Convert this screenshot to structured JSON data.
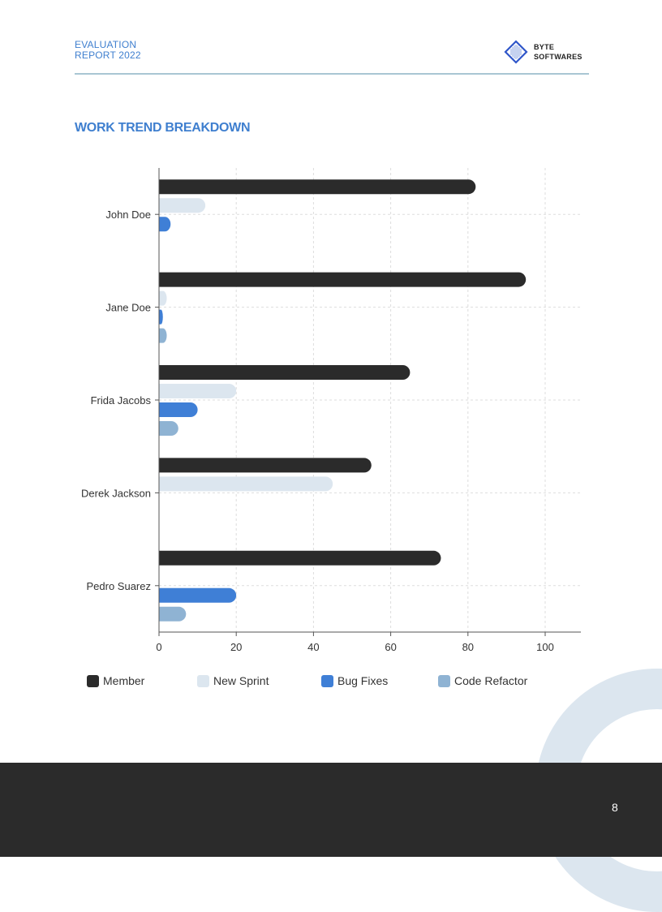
{
  "header": {
    "title_line1": "EVALUATION",
    "title_line2": "REPORT 2022",
    "logo_line1": "BYTE",
    "logo_line2": "SOFTWARES"
  },
  "section_title": "WORK TREND BREAKDOWN",
  "page_number": "8",
  "colors": {
    "member": "#2b2b2b",
    "new_sprint": "#dce6ef",
    "bug_fixes": "#3f7fd6",
    "code_refactor": "#8fb3d3",
    "accent": "#3f7fcf"
  },
  "chart_data": {
    "type": "bar",
    "orientation": "horizontal",
    "title": "WORK TREND BREAKDOWN",
    "categories": [
      "John Doe",
      "Jane Doe",
      "Frida Jacobs",
      "Derek Jackson",
      "Pedro Suarez"
    ],
    "series": [
      {
        "name": "Member",
        "values": [
          82,
          95,
          65,
          55,
          73
        ]
      },
      {
        "name": "New Sprint",
        "values": [
          12,
          2,
          20,
          45,
          0
        ]
      },
      {
        "name": "Bug Fixes",
        "values": [
          3,
          1,
          10,
          0,
          20
        ]
      },
      {
        "name": "Code Refactor",
        "values": [
          0,
          2,
          5,
          0,
          7
        ]
      }
    ],
    "xticks": [
      0,
      20,
      40,
      60,
      80,
      100
    ],
    "xlim": [
      0,
      110
    ],
    "grid": true,
    "legend_position": "bottom"
  },
  "legend": [
    "Member",
    "New Sprint",
    "Bug Fixes",
    "Code Refactor"
  ]
}
